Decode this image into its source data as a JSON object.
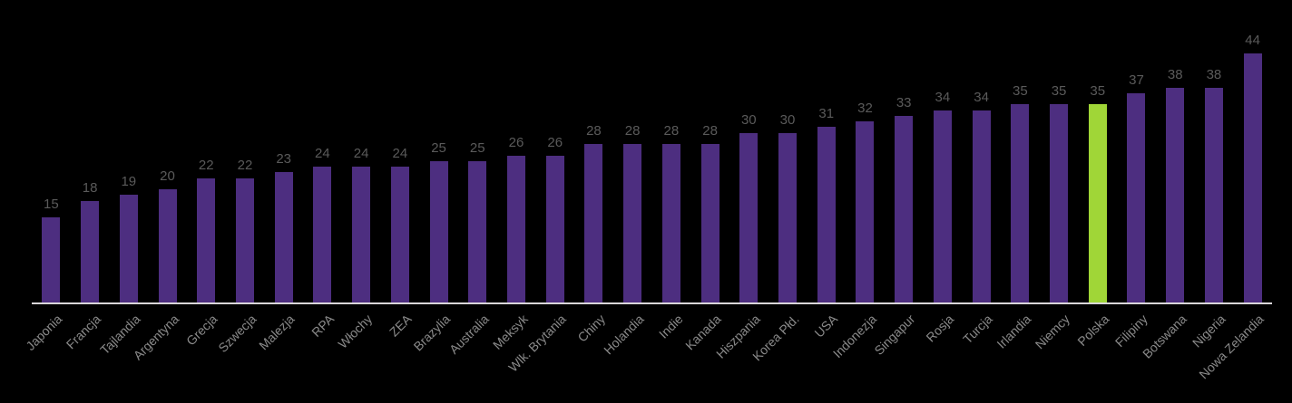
{
  "chart_data": {
    "type": "bar",
    "title": "",
    "xlabel": "",
    "ylabel": "",
    "categories": [
      "Japonia",
      "Francja",
      "Tajlandia",
      "Argentyna",
      "Grecja",
      "Szwecja",
      "Malezja",
      "RPA",
      "Włochy",
      "ZEA",
      "Brazylia",
      "Australia",
      "Meksyk",
      "Wlk. Brytania",
      "Chiny",
      "Holandia",
      "Indie",
      "Kanada",
      "Hiszpania",
      "Korea Płd.",
      "USA",
      "Indonezja",
      "Singapur",
      "Rosja",
      "Turcja",
      "Irlandia",
      "Niemcy",
      "Polska",
      "Filipiny",
      "Botswana",
      "Nigeria",
      "Nowa Zelandia"
    ],
    "values": [
      15,
      18,
      19,
      20,
      22,
      22,
      23,
      24,
      24,
      24,
      25,
      25,
      26,
      26,
      28,
      28,
      28,
      28,
      30,
      30,
      31,
      32,
      33,
      34,
      34,
      35,
      35,
      35,
      37,
      38,
      38,
      44
    ],
    "highlight_category": "Polska",
    "highlight_value": 35,
    "value_labels_shown": true,
    "grid": false,
    "legend": false,
    "ylim": [
      0,
      50
    ],
    "category_label_rotation_deg": 45,
    "colors": {
      "background": "#000000",
      "bar": "#4D2E80",
      "highlight_bar": "#A0D637",
      "value_label": "#5A5A5A",
      "category_label": "#8A8A8A",
      "axis_line": "#D9D6D9"
    }
  }
}
